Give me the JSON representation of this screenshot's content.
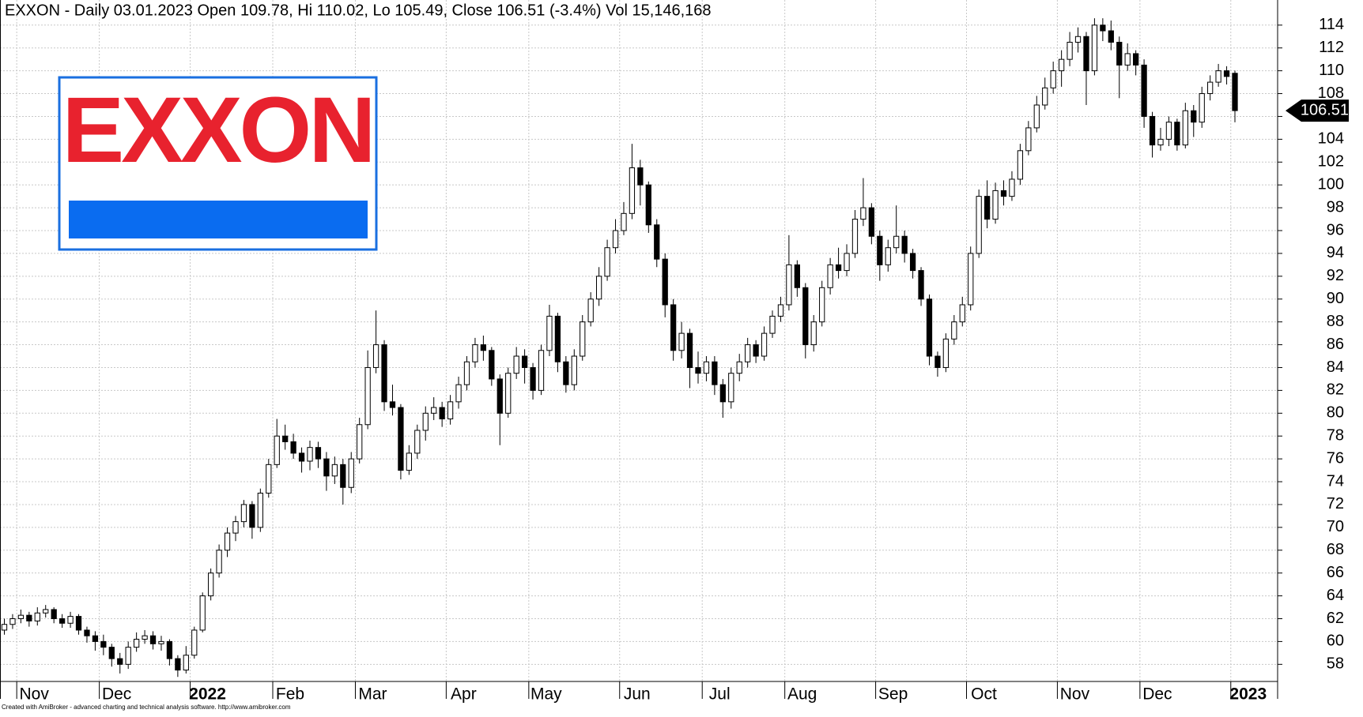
{
  "chart_data": {
    "type": "candlestick",
    "title": "EXXON - Daily 03.01.2023 Open 109.78, Hi 110.02, Lo 105.49, Close 106.51 (-3.4%) Vol 15,146,168",
    "logo_text": "EXXON",
    "footer": "Created with AmiBroker - advanced charting and technical analysis software. http://www.amibroker.com",
    "ylim": [
      56.5,
      116.2
    ],
    "yticks": [
      58,
      60,
      62,
      64,
      66,
      68,
      70,
      72,
      74,
      76,
      78,
      80,
      82,
      84,
      86,
      88,
      90,
      92,
      94,
      96,
      98,
      100,
      102,
      104,
      106,
      108,
      110,
      112,
      114
    ],
    "grid": true,
    "months": [
      {
        "label": "Nov",
        "start": 2
      },
      {
        "label": "Dec",
        "start": 12
      },
      {
        "label": "2022",
        "start": 23
      },
      {
        "label": "Feb",
        "start": 33
      },
      {
        "label": "Mar",
        "start": 43
      },
      {
        "label": "Apr",
        "start": 54
      },
      {
        "label": "May",
        "start": 64
      },
      {
        "label": "Jun",
        "start": 75
      },
      {
        "label": "Jul",
        "start": 85
      },
      {
        "label": "Aug",
        "start": 95
      },
      {
        "label": "Sep",
        "start": 106
      },
      {
        "label": "Oct",
        "start": 117
      },
      {
        "label": "Nov",
        "start": 128
      },
      {
        "label": "Dec",
        "start": 138
      },
      {
        "label": "2023",
        "start": 149
      }
    ],
    "ohlc": [
      [
        61.0,
        62.0,
        60.6,
        61.5
      ],
      [
        61.5,
        62.4,
        61.1,
        62.0
      ],
      [
        62.0,
        62.8,
        61.6,
        62.3
      ],
      [
        62.3,
        62.6,
        61.3,
        61.8
      ],
      [
        61.8,
        63.0,
        61.4,
        62.5
      ],
      [
        62.5,
        63.2,
        62.1,
        62.8
      ],
      [
        62.8,
        63.0,
        61.6,
        62.0
      ],
      [
        62.0,
        62.4,
        61.2,
        61.6
      ],
      [
        61.6,
        62.6,
        61.2,
        62.2
      ],
      [
        62.2,
        62.4,
        60.6,
        61.0
      ],
      [
        61.0,
        61.3,
        59.9,
        60.5
      ],
      [
        60.5,
        60.9,
        59.2,
        60.0
      ],
      [
        60.0,
        60.6,
        58.8,
        59.5
      ],
      [
        59.5,
        59.8,
        57.8,
        58.5
      ],
      [
        58.5,
        59.0,
        57.2,
        58.0
      ],
      [
        58.0,
        60.0,
        57.6,
        59.5
      ],
      [
        59.5,
        60.8,
        59.1,
        60.2
      ],
      [
        60.2,
        61.0,
        59.8,
        60.5
      ],
      [
        60.5,
        60.9,
        59.3,
        59.8
      ],
      [
        59.8,
        60.5,
        59.2,
        60.0
      ],
      [
        60.0,
        60.2,
        57.9,
        58.5
      ],
      [
        58.5,
        58.8,
        56.9,
        57.5
      ],
      [
        57.5,
        59.6,
        57.2,
        58.8
      ],
      [
        58.8,
        61.3,
        58.5,
        61.0
      ],
      [
        61.0,
        64.3,
        60.8,
        64.0
      ],
      [
        64.0,
        66.4,
        63.6,
        66.0
      ],
      [
        66.0,
        68.5,
        65.6,
        68.0
      ],
      [
        68.0,
        70.0,
        67.4,
        69.5
      ],
      [
        69.5,
        71.0,
        68.8,
        70.5
      ],
      [
        70.5,
        72.4,
        70.0,
        72.0
      ],
      [
        72.0,
        72.3,
        69.0,
        70.0
      ],
      [
        70.0,
        73.4,
        69.6,
        73.0
      ],
      [
        73.0,
        76.0,
        72.6,
        75.5
      ],
      [
        75.5,
        79.5,
        75.2,
        78.0
      ],
      [
        78.0,
        79.0,
        76.8,
        77.5
      ],
      [
        77.5,
        78.2,
        76.0,
        76.5
      ],
      [
        76.5,
        77.0,
        74.8,
        75.8
      ],
      [
        75.8,
        77.6,
        75.0,
        77.0
      ],
      [
        77.0,
        77.5,
        75.2,
        76.0
      ],
      [
        76.0,
        76.6,
        73.2,
        74.5
      ],
      [
        74.5,
        76.2,
        73.8,
        75.5
      ],
      [
        75.5,
        76.0,
        72.0,
        73.5
      ],
      [
        73.5,
        76.6,
        73.0,
        76.0
      ],
      [
        76.0,
        79.6,
        75.6,
        79.0
      ],
      [
        79.0,
        85.5,
        78.6,
        84.0
      ],
      [
        84.0,
        89.0,
        83.5,
        86.0
      ],
      [
        86.0,
        86.4,
        80.2,
        81.0
      ],
      [
        81.0,
        82.5,
        79.8,
        80.5
      ],
      [
        80.5,
        80.8,
        74.2,
        75.0
      ],
      [
        75.0,
        77.2,
        74.6,
        76.5
      ],
      [
        76.5,
        79.0,
        76.0,
        78.5
      ],
      [
        78.5,
        80.6,
        77.6,
        80.0
      ],
      [
        80.0,
        81.4,
        79.4,
        80.5
      ],
      [
        80.5,
        81.0,
        78.8,
        79.5
      ],
      [
        79.5,
        81.6,
        79.0,
        81.0
      ],
      [
        81.0,
        83.2,
        80.4,
        82.5
      ],
      [
        82.5,
        85.0,
        82.0,
        84.5
      ],
      [
        84.5,
        86.6,
        84.0,
        86.0
      ],
      [
        86.0,
        86.8,
        84.6,
        85.5
      ],
      [
        85.5,
        85.8,
        82.4,
        83.0
      ],
      [
        83.0,
        83.4,
        77.2,
        80.0
      ],
      [
        80.0,
        84.0,
        79.6,
        83.5
      ],
      [
        83.5,
        85.8,
        83.0,
        85.0
      ],
      [
        85.0,
        85.6,
        82.6,
        84.0
      ],
      [
        84.0,
        84.4,
        81.2,
        82.0
      ],
      [
        82.0,
        86.0,
        81.6,
        85.5
      ],
      [
        85.5,
        89.5,
        85.0,
        88.5
      ],
      [
        88.5,
        88.8,
        83.6,
        84.5
      ],
      [
        84.5,
        85.0,
        81.8,
        82.5
      ],
      [
        82.5,
        85.6,
        82.0,
        85.0
      ],
      [
        85.0,
        88.6,
        84.6,
        88.0
      ],
      [
        88.0,
        90.6,
        87.6,
        90.0
      ],
      [
        90.0,
        92.8,
        89.4,
        92.0
      ],
      [
        92.0,
        95.2,
        91.6,
        94.5
      ],
      [
        94.5,
        97.0,
        94.0,
        96.0
      ],
      [
        96.0,
        98.5,
        95.6,
        97.5
      ],
      [
        97.5,
        103.6,
        97.0,
        101.5
      ],
      [
        101.5,
        102.2,
        98.2,
        100.0
      ],
      [
        100.0,
        100.3,
        95.8,
        96.5
      ],
      [
        96.5,
        97.0,
        92.8,
        93.5
      ],
      [
        93.5,
        94.0,
        88.4,
        89.5
      ],
      [
        89.5,
        90.0,
        84.6,
        85.5
      ],
      [
        85.5,
        88.0,
        84.8,
        87.0
      ],
      [
        87.0,
        87.4,
        82.2,
        84.0
      ],
      [
        84.0,
        85.4,
        82.6,
        83.5
      ],
      [
        83.5,
        85.0,
        82.8,
        84.5
      ],
      [
        84.5,
        85.0,
        81.6,
        82.5
      ],
      [
        82.5,
        83.0,
        79.6,
        81.0
      ],
      [
        81.0,
        84.0,
        80.4,
        83.5
      ],
      [
        83.5,
        85.2,
        82.8,
        84.5
      ],
      [
        84.5,
        86.6,
        84.0,
        86.0
      ],
      [
        86.0,
        86.4,
        84.4,
        85.0
      ],
      [
        85.0,
        87.6,
        84.6,
        87.0
      ],
      [
        87.0,
        89.0,
        86.6,
        88.5
      ],
      [
        88.5,
        90.2,
        88.0,
        89.5
      ],
      [
        89.5,
        95.6,
        89.0,
        93.0
      ],
      [
        93.0,
        93.4,
        90.2,
        91.0
      ],
      [
        91.0,
        91.4,
        84.8,
        86.0
      ],
      [
        86.0,
        88.6,
        85.4,
        88.0
      ],
      [
        88.0,
        91.6,
        87.6,
        91.0
      ],
      [
        91.0,
        93.6,
        90.4,
        93.0
      ],
      [
        93.0,
        94.5,
        91.8,
        92.5
      ],
      [
        92.5,
        94.8,
        92.0,
        94.0
      ],
      [
        94.0,
        97.8,
        93.6,
        97.0
      ],
      [
        97.0,
        100.6,
        96.4,
        98.0
      ],
      [
        98.0,
        98.4,
        94.8,
        95.5
      ],
      [
        95.5,
        96.0,
        91.6,
        93.0
      ],
      [
        93.0,
        95.2,
        92.4,
        94.5
      ],
      [
        94.5,
        98.2,
        94.0,
        95.5
      ],
      [
        95.5,
        96.0,
        93.2,
        94.0
      ],
      [
        94.0,
        94.4,
        91.8,
        92.5
      ],
      [
        92.5,
        92.8,
        89.4,
        90.0
      ],
      [
        90.0,
        90.4,
        84.2,
        85.0
      ],
      [
        85.0,
        85.4,
        83.2,
        84.0
      ],
      [
        84.0,
        87.0,
        83.6,
        86.5
      ],
      [
        86.5,
        88.6,
        86.0,
        88.0
      ],
      [
        88.0,
        90.2,
        87.6,
        89.5
      ],
      [
        89.5,
        94.6,
        89.0,
        94.0
      ],
      [
        94.0,
        99.6,
        93.6,
        99.0
      ],
      [
        99.0,
        100.4,
        96.2,
        97.0
      ],
      [
        97.0,
        100.2,
        96.6,
        99.5
      ],
      [
        99.5,
        100.4,
        98.2,
        99.0
      ],
      [
        99.0,
        101.2,
        98.6,
        100.5
      ],
      [
        100.5,
        103.6,
        100.0,
        103.0
      ],
      [
        103.0,
        105.6,
        102.6,
        105.0
      ],
      [
        105.0,
        107.8,
        104.6,
        107.0
      ],
      [
        107.0,
        109.4,
        106.6,
        108.5
      ],
      [
        108.5,
        110.8,
        108.0,
        110.0
      ],
      [
        110.0,
        111.8,
        108.6,
        111.0
      ],
      [
        111.0,
        113.4,
        110.4,
        112.5
      ],
      [
        112.5,
        113.8,
        111.6,
        113.0
      ],
      [
        113.0,
        113.4,
        107.0,
        110.0
      ],
      [
        110.0,
        114.6,
        109.6,
        114.0
      ],
      [
        114.0,
        114.6,
        112.6,
        113.5
      ],
      [
        113.5,
        114.4,
        111.8,
        112.5
      ],
      [
        112.5,
        113.0,
        107.6,
        110.5
      ],
      [
        110.5,
        112.4,
        110.0,
        111.5
      ],
      [
        111.5,
        111.8,
        109.6,
        110.5
      ],
      [
        110.5,
        111.0,
        105.0,
        106.0
      ],
      [
        106.0,
        106.4,
        102.4,
        103.5
      ],
      [
        103.5,
        105.0,
        103.0,
        104.0
      ],
      [
        104.0,
        106.0,
        103.4,
        105.5
      ],
      [
        105.5,
        105.8,
        103.0,
        103.5
      ],
      [
        103.5,
        107.2,
        103.2,
        106.5
      ],
      [
        106.5,
        107.0,
        104.2,
        105.5
      ],
      [
        105.5,
        108.6,
        105.0,
        108.0
      ],
      [
        108.0,
        109.6,
        107.4,
        109.0
      ],
      [
        109.0,
        110.6,
        108.6,
        110.0
      ],
      [
        110.0,
        110.4,
        108.8,
        109.5
      ],
      [
        109.78,
        110.02,
        105.49,
        106.51
      ]
    ]
  }
}
